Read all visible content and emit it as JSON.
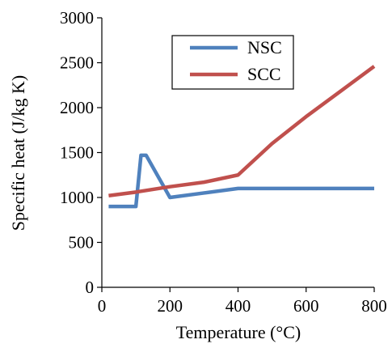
{
  "chart_data": {
    "type": "line",
    "title": "",
    "xlabel": "Temperature (°C)",
    "ylabel": "Specific heat (J/kg K)",
    "xlim": [
      0,
      800
    ],
    "ylim": [
      0,
      3000
    ],
    "xticks": [
      0,
      200,
      400,
      600,
      800
    ],
    "yticks": [
      0,
      500,
      1000,
      1500,
      2000,
      2500,
      3000
    ],
    "xtick_labels": [
      "0",
      "200",
      "400",
      "600",
      "800"
    ],
    "ytick_labels": [
      "0",
      "500",
      "1000",
      "1500",
      "2000",
      "2500",
      "3000"
    ],
    "grid": false,
    "legend_position": "top-right",
    "series": [
      {
        "name": "NSC",
        "color": "#4F81BD",
        "x": [
          20,
          100,
          115,
          130,
          200,
          300,
          400,
          800
        ],
        "y": [
          900,
          900,
          1470,
          1470,
          1000,
          1050,
          1100,
          1100
        ]
      },
      {
        "name": "SCC",
        "color": "#C0504D",
        "x": [
          20,
          100,
          200,
          300,
          400,
          500,
          600,
          700,
          800
        ],
        "y": [
          1020,
          1060,
          1120,
          1170,
          1250,
          1600,
          1900,
          2180,
          2460
        ]
      }
    ]
  }
}
